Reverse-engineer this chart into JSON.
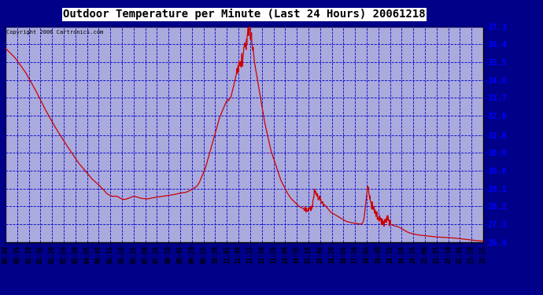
{
  "title": "Outdoor Temperature per Minute (Last 24 Hours) 20061218",
  "copyright_text": "Copyright 2006 Cartronics.com",
  "line_color": "#cc0000",
  "bg_color": "#000088",
  "plot_bg_color": "#aaaadd",
  "border_color": "#000000",
  "grid_color": "#0000cc",
  "title_color": "#000000",
  "yticks": [
    26.4,
    27.3,
    28.2,
    29.1,
    30.0,
    30.9,
    31.8,
    32.8,
    33.7,
    34.6,
    35.5,
    36.4,
    37.3
  ],
  "ymin": 26.4,
  "ymax": 37.3,
  "xtick_labels": [
    "00:00",
    "00:35",
    "01:10",
    "01:45",
    "02:20",
    "02:55",
    "03:30",
    "04:05",
    "04:40",
    "05:15",
    "05:50",
    "06:25",
    "07:00",
    "07:35",
    "08:10",
    "08:45",
    "09:20",
    "09:55",
    "10:30",
    "11:05",
    "11:40",
    "12:15",
    "12:50",
    "13:25",
    "14:00",
    "14:35",
    "15:10",
    "15:45",
    "16:20",
    "16:55",
    "17:30",
    "18:05",
    "18:40",
    "19:15",
    "19:50",
    "20:25",
    "21:00",
    "21:35",
    "22:10",
    "22:45",
    "23:20",
    "23:55"
  ],
  "curve_data": [
    [
      0,
      36.2
    ],
    [
      30,
      35.7
    ],
    [
      60,
      35.0
    ],
    [
      90,
      34.1
    ],
    [
      120,
      33.1
    ],
    [
      150,
      32.2
    ],
    [
      180,
      31.4
    ],
    [
      200,
      30.9
    ],
    [
      220,
      30.4
    ],
    [
      240,
      30.0
    ],
    [
      260,
      29.6
    ],
    [
      280,
      29.3
    ],
    [
      295,
      29.05
    ],
    [
      305,
      28.85
    ],
    [
      315,
      28.75
    ],
    [
      325,
      28.7
    ],
    [
      330,
      28.72
    ],
    [
      340,
      28.68
    ],
    [
      345,
      28.62
    ],
    [
      350,
      28.58
    ],
    [
      355,
      28.55
    ],
    [
      360,
      28.55
    ],
    [
      370,
      28.6
    ],
    [
      380,
      28.68
    ],
    [
      390,
      28.7
    ],
    [
      400,
      28.65
    ],
    [
      410,
      28.6
    ],
    [
      420,
      28.58
    ],
    [
      430,
      28.58
    ],
    [
      440,
      28.62
    ],
    [
      450,
      28.65
    ],
    [
      460,
      28.68
    ],
    [
      470,
      28.7
    ],
    [
      480,
      28.72
    ],
    [
      490,
      28.75
    ],
    [
      500,
      28.78
    ],
    [
      510,
      28.8
    ],
    [
      520,
      28.85
    ],
    [
      530,
      28.88
    ],
    [
      540,
      28.9
    ],
    [
      550,
      28.95
    ],
    [
      560,
      29.05
    ],
    [
      570,
      29.15
    ],
    [
      575,
      29.2
    ],
    [
      580,
      29.3
    ],
    [
      585,
      29.45
    ],
    [
      590,
      29.65
    ],
    [
      595,
      29.85
    ],
    [
      600,
      30.05
    ],
    [
      605,
      30.3
    ],
    [
      610,
      30.6
    ],
    [
      615,
      30.9
    ],
    [
      620,
      31.2
    ],
    [
      625,
      31.5
    ],
    [
      630,
      31.8
    ],
    [
      635,
      32.1
    ],
    [
      640,
      32.4
    ],
    [
      645,
      32.7
    ],
    [
      650,
      32.9
    ],
    [
      655,
      33.1
    ],
    [
      660,
      33.3
    ],
    [
      665,
      33.5
    ],
    [
      670,
      33.6
    ],
    [
      672,
      33.55
    ],
    [
      675,
      33.65
    ],
    [
      678,
      33.7
    ],
    [
      680,
      33.8
    ],
    [
      683,
      34.0
    ],
    [
      686,
      34.2
    ],
    [
      689,
      34.4
    ],
    [
      692,
      34.65
    ],
    [
      695,
      34.85
    ],
    [
      698,
      35.1
    ],
    [
      700,
      35.25
    ],
    [
      702,
      35.05
    ],
    [
      704,
      35.3
    ],
    [
      706,
      35.5
    ],
    [
      708,
      35.35
    ],
    [
      710,
      35.6
    ],
    [
      712,
      35.75
    ],
    [
      714,
      35.55
    ],
    [
      716,
      35.8
    ],
    [
      718,
      36.0
    ],
    [
      720,
      36.2
    ],
    [
      722,
      36.4
    ],
    [
      724,
      36.5
    ],
    [
      725,
      36.3
    ],
    [
      726,
      36.55
    ],
    [
      727,
      36.7
    ],
    [
      728,
      36.85
    ],
    [
      729,
      37.0
    ],
    [
      730,
      37.15
    ],
    [
      731,
      37.3
    ],
    [
      732,
      37.1
    ],
    [
      733,
      36.9
    ],
    [
      734,
      37.0
    ],
    [
      735,
      37.2
    ],
    [
      736,
      37.3
    ],
    [
      737,
      37.1
    ],
    [
      738,
      36.95
    ],
    [
      739,
      37.1
    ],
    [
      740,
      36.9
    ],
    [
      741,
      36.7
    ],
    [
      742,
      36.5
    ],
    [
      743,
      36.35
    ],
    [
      744,
      36.2
    ],
    [
      745,
      36.1
    ],
    [
      746,
      36.25
    ],
    [
      747,
      36.0
    ],
    [
      748,
      35.8
    ],
    [
      749,
      35.65
    ],
    [
      750,
      35.5
    ],
    [
      752,
      35.3
    ],
    [
      754,
      35.1
    ],
    [
      756,
      34.9
    ],
    [
      758,
      34.7
    ],
    [
      760,
      34.5
    ],
    [
      762,
      34.3
    ],
    [
      764,
      34.1
    ],
    [
      766,
      33.9
    ],
    [
      768,
      33.7
    ],
    [
      770,
      33.5
    ],
    [
      772,
      33.3
    ],
    [
      774,
      33.1
    ],
    [
      776,
      32.9
    ],
    [
      778,
      32.7
    ],
    [
      780,
      32.5
    ],
    [
      784,
      32.2
    ],
    [
      788,
      31.9
    ],
    [
      792,
      31.6
    ],
    [
      796,
      31.3
    ],
    [
      800,
      31.0
    ],
    [
      806,
      30.7
    ],
    [
      812,
      30.4
    ],
    [
      818,
      30.1
    ],
    [
      824,
      29.8
    ],
    [
      830,
      29.5
    ],
    [
      836,
      29.3
    ],
    [
      842,
      29.1
    ],
    [
      848,
      28.9
    ],
    [
      854,
      28.75
    ],
    [
      860,
      28.6
    ],
    [
      866,
      28.5
    ],
    [
      872,
      28.4
    ],
    [
      878,
      28.3
    ],
    [
      884,
      28.2
    ],
    [
      890,
      28.15
    ],
    [
      896,
      28.1
    ],
    [
      900,
      28.05
    ],
    [
      910,
      28.0
    ],
    [
      916,
      28.05
    ],
    [
      920,
      28.1
    ],
    [
      924,
      28.2
    ],
    [
      928,
      28.6
    ],
    [
      930,
      29.0
    ],
    [
      932,
      29.1
    ],
    [
      934,
      28.9
    ],
    [
      936,
      28.8
    ],
    [
      940,
      28.7
    ],
    [
      945,
      28.6
    ],
    [
      950,
      28.5
    ],
    [
      955,
      28.4
    ],
    [
      960,
      28.3
    ],
    [
      965,
      28.2
    ],
    [
      970,
      28.1
    ],
    [
      975,
      28.0
    ],
    [
      980,
      27.9
    ],
    [
      985,
      27.85
    ],
    [
      990,
      27.8
    ],
    [
      995,
      27.75
    ],
    [
      1000,
      27.7
    ],
    [
      1005,
      27.65
    ],
    [
      1010,
      27.6
    ],
    [
      1015,
      27.55
    ],
    [
      1020,
      27.5
    ],
    [
      1025,
      27.45
    ],
    [
      1030,
      27.42
    ],
    [
      1035,
      27.4
    ],
    [
      1040,
      27.38
    ],
    [
      1050,
      27.35
    ],
    [
      1060,
      27.32
    ],
    [
      1070,
      27.3
    ],
    [
      1075,
      27.35
    ],
    [
      1078,
      27.45
    ],
    [
      1080,
      27.6
    ],
    [
      1083,
      28.0
    ],
    [
      1086,
      28.5
    ],
    [
      1088,
      28.8
    ],
    [
      1090,
      29.05
    ],
    [
      1092,
      29.1
    ],
    [
      1094,
      28.95
    ],
    [
      1096,
      28.8
    ],
    [
      1098,
      28.6
    ],
    [
      1100,
      28.4
    ],
    [
      1105,
      28.2
    ],
    [
      1110,
      28.0
    ],
    [
      1115,
      27.85
    ],
    [
      1120,
      27.7
    ],
    [
      1125,
      27.6
    ],
    [
      1130,
      27.5
    ],
    [
      1135,
      27.42
    ],
    [
      1140,
      27.35
    ],
    [
      1142,
      27.38
    ],
    [
      1144,
      27.42
    ],
    [
      1146,
      27.48
    ],
    [
      1148,
      27.55
    ],
    [
      1150,
      27.6
    ],
    [
      1152,
      27.55
    ],
    [
      1154,
      27.45
    ],
    [
      1156,
      27.38
    ],
    [
      1158,
      27.32
    ],
    [
      1160,
      27.28
    ],
    [
      1165,
      27.25
    ],
    [
      1170,
      27.22
    ],
    [
      1175,
      27.2
    ],
    [
      1180,
      27.18
    ],
    [
      1185,
      27.15
    ],
    [
      1190,
      27.1
    ],
    [
      1195,
      27.05
    ],
    [
      1200,
      27.0
    ],
    [
      1205,
      26.95
    ],
    [
      1210,
      26.9
    ],
    [
      1215,
      26.87
    ],
    [
      1220,
      26.84
    ],
    [
      1225,
      26.82
    ],
    [
      1230,
      26.8
    ],
    [
      1235,
      26.78
    ],
    [
      1240,
      26.76
    ],
    [
      1250,
      26.74
    ],
    [
      1260,
      26.72
    ],
    [
      1270,
      26.7
    ],
    [
      1280,
      26.68
    ],
    [
      1290,
      26.66
    ],
    [
      1300,
      26.65
    ],
    [
      1310,
      26.64
    ],
    [
      1320,
      26.63
    ],
    [
      1330,
      26.62
    ],
    [
      1340,
      26.61
    ],
    [
      1350,
      26.6
    ],
    [
      1360,
      26.58
    ],
    [
      1370,
      26.56
    ],
    [
      1380,
      26.54
    ],
    [
      1390,
      26.52
    ],
    [
      1400,
      26.5
    ],
    [
      1410,
      26.48
    ],
    [
      1420,
      26.46
    ],
    [
      1430,
      26.45
    ],
    [
      1439,
      26.44
    ]
  ]
}
